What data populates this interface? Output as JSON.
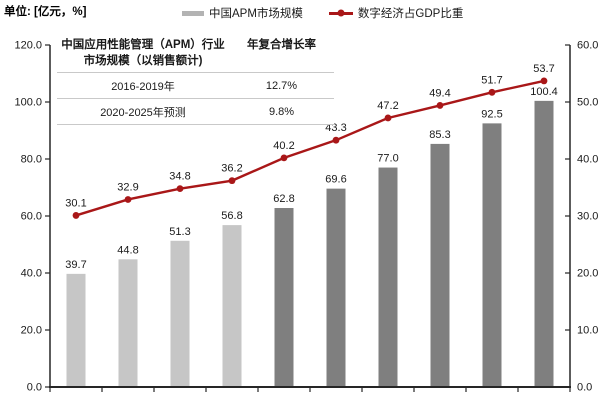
{
  "unit_label": "单位: [亿元，%]",
  "legend": {
    "bars": "中国APM市场规模",
    "line": "数字经济占GDP比重"
  },
  "inset_table": {
    "col1_header_line1": "中国应用性能管理（APM）行业",
    "col1_header_line2": "市场规模（以销售额计)",
    "col2_header": "年复合增长率",
    "rows": [
      {
        "period": "2016-2019年",
        "cagr": "12.7%"
      },
      {
        "period": "2020-2025年预测",
        "cagr": "9.8%"
      }
    ]
  },
  "chart_data": {
    "type": "bar+line",
    "title": "",
    "x_axis": {
      "labels_visible": false,
      "tick_count": 11,
      "group_count": 10
    },
    "bar_series": {
      "name": "中国APM市场规模",
      "axis": "left",
      "unit": "亿元",
      "values": [
        39.7,
        44.8,
        51.3,
        56.8,
        62.8,
        69.6,
        77.0,
        85.3,
        92.5,
        100.4
      ],
      "forecast_start_index": 4
    },
    "line_series": {
      "name": "数字经济占GDP比重",
      "axis": "right",
      "unit": "%",
      "values": [
        30.1,
        32.9,
        34.8,
        36.2,
        40.2,
        43.3,
        47.2,
        49.4,
        51.7,
        53.7
      ]
    },
    "left_axis": {
      "min": 0,
      "max": 120,
      "step": 20,
      "tick_labels": [
        "0.0",
        "20.0",
        "40.0",
        "60.0",
        "80.0",
        "100.0",
        "120.0"
      ]
    },
    "right_axis": {
      "min": 0,
      "max": 60,
      "step": 10,
      "tick_labels": [
        "0.0",
        "10.0",
        "20.0",
        "30.0",
        "40.0",
        "50.0",
        "60.0"
      ]
    },
    "grid": false,
    "legend_position": "top-center",
    "colors": {
      "bar_actual": "#c6c6c6",
      "bar_forecast": "#7f7f7f",
      "line": "#a91718",
      "legend_bar_swatch": "#b3b3b3",
      "axis": "#262626",
      "label_text": "#1a1a1a"
    }
  }
}
